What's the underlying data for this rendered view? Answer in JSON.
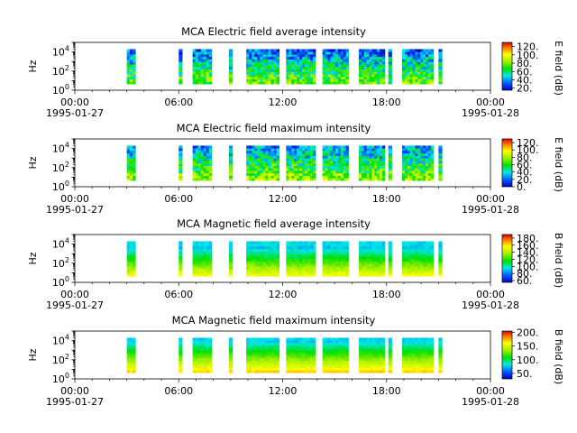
{
  "chart_data": [
    {
      "type": "heatmap",
      "title": "MCA  Electric field average intensity",
      "ylabel": "Hz",
      "yscale": "log",
      "ylim": [
        1,
        100000
      ],
      "yticks": [
        "10^0",
        "10^2",
        "10^4"
      ],
      "xlim_hours": [
        0,
        24
      ],
      "xticks": [
        "00:00",
        "06:00",
        "12:00",
        "18:00",
        "00:00"
      ],
      "date_start": "1995-01-27",
      "date_end": "1995-01-28",
      "colorbar": {
        "label": "E field (dB)",
        "range": [
          15,
          130
        ],
        "ticks": [
          "20.",
          "40.",
          "60.",
          "80.",
          "100.",
          "120."
        ]
      },
      "data_intervals_hours": [
        [
          3.0,
          3.5
        ],
        [
          6.0,
          6.2
        ],
        [
          6.8,
          7.9
        ],
        [
          8.9,
          9.1
        ],
        [
          9.9,
          11.8
        ],
        [
          12.2,
          13.9
        ],
        [
          14.3,
          15.8
        ],
        [
          16.4,
          17.9
        ],
        [
          18.1,
          18.3
        ],
        [
          18.9,
          20.7
        ],
        [
          21.0,
          21.2
        ]
      ],
      "background_level": 62
    },
    {
      "type": "heatmap",
      "title": "MCA  Electric field maximum intensity",
      "ylabel": "Hz",
      "yscale": "log",
      "ylim": [
        1,
        100000
      ],
      "yticks": [
        "10^0",
        "10^2",
        "10^4"
      ],
      "xlim_hours": [
        0,
        24
      ],
      "xticks": [
        "00:00",
        "06:00",
        "12:00",
        "18:00",
        "00:00"
      ],
      "date_start": "1995-01-27",
      "date_end": "1995-01-28",
      "colorbar": {
        "label": "E field (dB)",
        "range": [
          0,
          130
        ],
        "ticks": [
          "0.",
          "20.",
          "40.",
          "60.",
          "80.",
          "100.",
          "120."
        ]
      },
      "data_intervals_hours": [
        [
          3.0,
          3.5
        ],
        [
          6.0,
          6.2
        ],
        [
          6.8,
          7.9
        ],
        [
          8.9,
          9.1
        ],
        [
          9.9,
          11.8
        ],
        [
          12.2,
          13.9
        ],
        [
          14.3,
          15.8
        ],
        [
          16.4,
          17.9
        ],
        [
          18.1,
          18.3
        ],
        [
          18.9,
          20.7
        ],
        [
          21.0,
          21.2
        ]
      ],
      "background_level": 60
    },
    {
      "type": "heatmap",
      "title": "MCA  Magnetic field average intensity",
      "ylabel": "Hz",
      "yscale": "log",
      "ylim": [
        1,
        100000
      ],
      "yticks": [
        "10^0",
        "10^2",
        "10^4"
      ],
      "xlim_hours": [
        0,
        24
      ],
      "xticks": [
        "00:00",
        "06:00",
        "12:00",
        "18:00",
        "00:00"
      ],
      "date_start": "1995-01-27",
      "date_end": "1995-01-28",
      "colorbar": {
        "label": "B field (dB)",
        "range": [
          55,
          190
        ],
        "ticks": [
          "60.",
          "80.",
          "100.",
          "120.",
          "140.",
          "160.",
          "180."
        ]
      },
      "data_intervals_hours": [
        [
          3.0,
          3.5
        ],
        [
          6.0,
          6.2
        ],
        [
          6.8,
          7.9
        ],
        [
          8.9,
          9.1
        ],
        [
          9.9,
          11.8
        ],
        [
          12.2,
          13.9
        ],
        [
          14.3,
          15.8
        ],
        [
          16.4,
          17.9
        ],
        [
          18.1,
          18.3
        ],
        [
          18.9,
          20.7
        ],
        [
          21.0,
          21.2
        ]
      ],
      "background_level": 120
    },
    {
      "type": "heatmap",
      "title": "MCA  Magnetic field maximum intensity",
      "ylabel": "Hz",
      "yscale": "log",
      "ylim": [
        1,
        100000
      ],
      "yticks": [
        "10^0",
        "10^2",
        "10^4"
      ],
      "xlim_hours": [
        0,
        24
      ],
      "xticks": [
        "00:00",
        "06:00",
        "12:00",
        "18:00",
        "00:00"
      ],
      "date_start": "1995-01-27",
      "date_end": "1995-01-28",
      "colorbar": {
        "label": "B field (dB)",
        "range": [
          30,
          205
        ],
        "ticks": [
          "50.",
          "100.",
          "150.",
          "200."
        ]
      },
      "data_intervals_hours": [
        [
          3.0,
          3.5
        ],
        [
          6.0,
          6.2
        ],
        [
          6.8,
          7.9
        ],
        [
          8.9,
          9.1
        ],
        [
          9.9,
          11.8
        ],
        [
          12.2,
          13.9
        ],
        [
          14.3,
          15.8
        ],
        [
          16.4,
          17.9
        ],
        [
          18.1,
          18.3
        ],
        [
          18.9,
          20.7
        ],
        [
          21.0,
          21.2
        ]
      ],
      "background_level": 125
    }
  ]
}
